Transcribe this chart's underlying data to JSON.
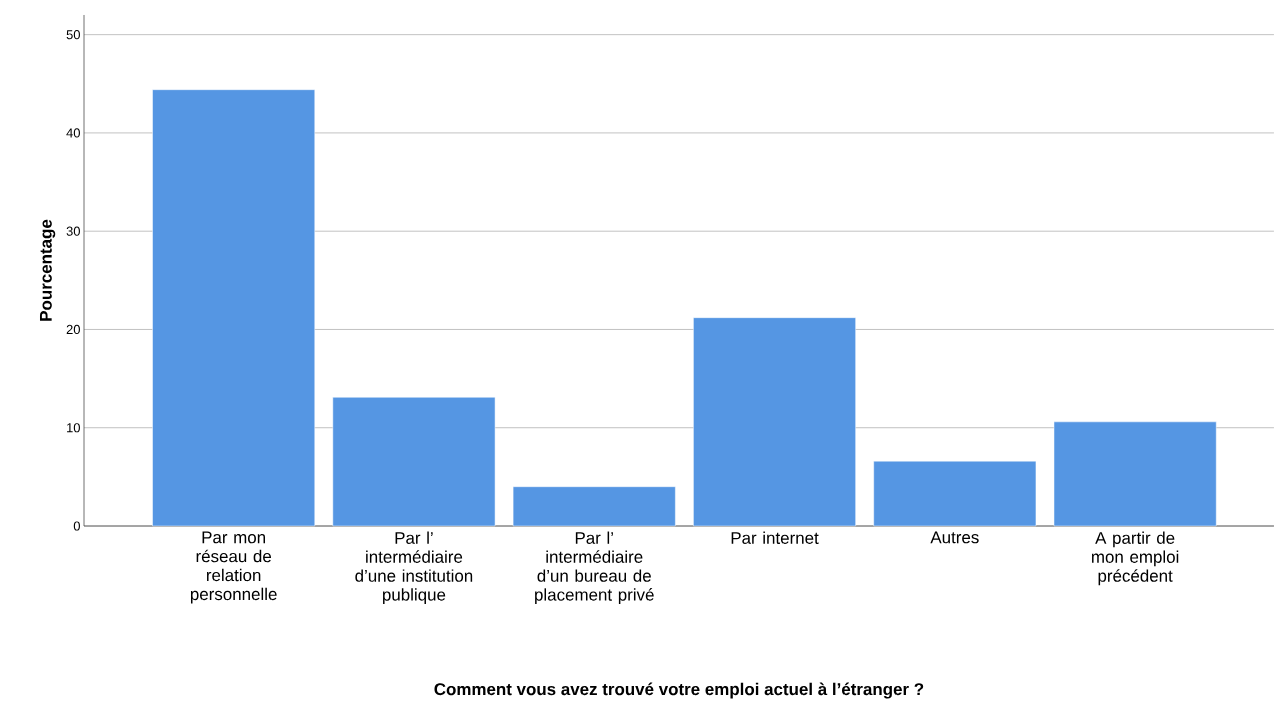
{
  "chart_data": {
    "type": "bar",
    "categories": [
      "Par mon réseau de relation personnelle",
      "Par l’ intermédiaire d’une institution publique",
      "Par l’ intermédiaire d’un bureau de placement privé",
      "Par internet",
      "Autres",
      "A partir de mon emploi précédent"
    ],
    "values": [
      44.4,
      13.1,
      4.0,
      21.2,
      6.6,
      10.6
    ],
    "color": "#5596e3",
    "xlabel": "Comment vous avez trouvé votre emploi actuel à l’étranger ?",
    "ylabel": "Pourcentage",
    "ylim": [
      0,
      52
    ],
    "yticks": [
      0,
      10,
      20,
      30,
      40,
      50
    ],
    "grid": "y"
  }
}
